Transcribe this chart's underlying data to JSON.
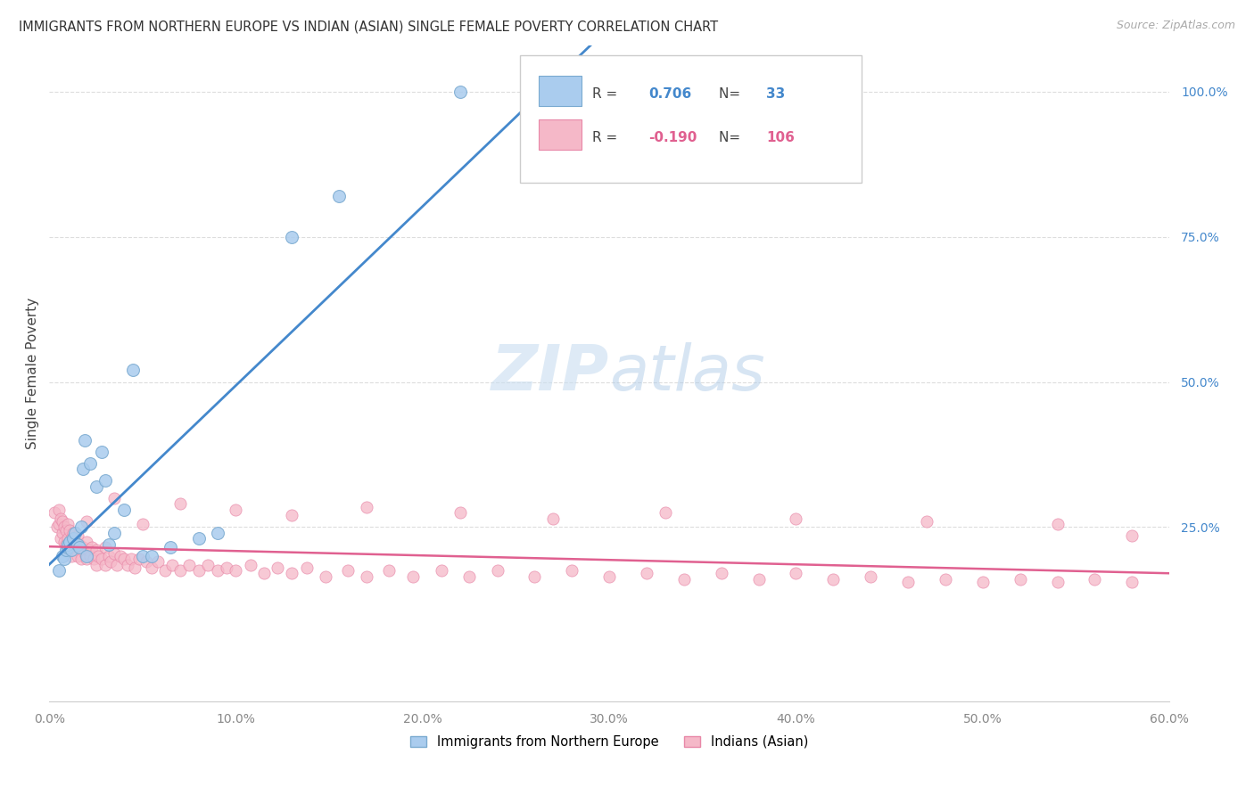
{
  "title": "IMMIGRANTS FROM NORTHERN EUROPE VS INDIAN (ASIAN) SINGLE FEMALE POVERTY CORRELATION CHART",
  "source": "Source: ZipAtlas.com",
  "ylabel": "Single Female Poverty",
  "xlim": [
    0.0,
    0.6
  ],
  "ylim": [
    -0.05,
    1.08
  ],
  "xtick_values": [
    0.0,
    0.1,
    0.2,
    0.3,
    0.4,
    0.5,
    0.6
  ],
  "ytick_values_right": [
    1.0,
    0.75,
    0.5,
    0.25
  ],
  "ytick_labels_right": [
    "100.0%",
    "75.0%",
    "50.0%",
    "25.0%"
  ],
  "R1": "0.706",
  "N1": "33",
  "R2": "-0.190",
  "N2": "106",
  "legend_label1": "Immigrants from Northern Europe",
  "legend_label2": "Indians (Asian)",
  "color_blue": "#aaccee",
  "color_blue_edge": "#7aaad0",
  "color_pink": "#f5b8c8",
  "color_pink_edge": "#e888a8",
  "color_blue_line": "#4488cc",
  "color_pink_line": "#e06090",
  "color_blue_text": "#4488cc",
  "color_pink_text": "#e06090",
  "watermark_zip": "ZIP",
  "watermark_atlas": "atlas",
  "grid_color": "#dddddd",
  "title_color": "#333333",
  "source_color": "#aaaaaa",
  "blue_x": [
    0.005,
    0.007,
    0.008,
    0.009,
    0.01,
    0.01,
    0.011,
    0.012,
    0.013,
    0.014,
    0.015,
    0.016,
    0.017,
    0.018,
    0.019,
    0.02,
    0.022,
    0.025,
    0.028,
    0.03,
    0.032,
    0.035,
    0.04,
    0.045,
    0.05,
    0.055,
    0.065,
    0.08,
    0.09,
    0.13,
    0.155,
    0.22,
    0.295
  ],
  "blue_y": [
    0.175,
    0.2,
    0.195,
    0.21,
    0.215,
    0.22,
    0.225,
    0.21,
    0.23,
    0.24,
    0.22,
    0.215,
    0.25,
    0.35,
    0.4,
    0.2,
    0.36,
    0.32,
    0.38,
    0.33,
    0.22,
    0.24,
    0.28,
    0.52,
    0.2,
    0.2,
    0.215,
    0.23,
    0.24,
    0.75,
    0.82,
    1.0,
    1.0
  ],
  "pink_x": [
    0.003,
    0.004,
    0.005,
    0.005,
    0.006,
    0.006,
    0.007,
    0.007,
    0.008,
    0.008,
    0.009,
    0.009,
    0.01,
    0.01,
    0.01,
    0.011,
    0.011,
    0.012,
    0.012,
    0.013,
    0.013,
    0.014,
    0.015,
    0.015,
    0.016,
    0.017,
    0.018,
    0.019,
    0.02,
    0.02,
    0.021,
    0.022,
    0.023,
    0.024,
    0.025,
    0.025,
    0.026,
    0.028,
    0.03,
    0.03,
    0.032,
    0.033,
    0.035,
    0.036,
    0.038,
    0.04,
    0.042,
    0.044,
    0.046,
    0.048,
    0.052,
    0.055,
    0.058,
    0.062,
    0.066,
    0.07,
    0.075,
    0.08,
    0.085,
    0.09,
    0.095,
    0.1,
    0.108,
    0.115,
    0.122,
    0.13,
    0.138,
    0.148,
    0.16,
    0.17,
    0.182,
    0.195,
    0.21,
    0.225,
    0.24,
    0.26,
    0.28,
    0.3,
    0.32,
    0.34,
    0.36,
    0.38,
    0.4,
    0.42,
    0.44,
    0.46,
    0.48,
    0.5,
    0.52,
    0.54,
    0.56,
    0.58,
    0.02,
    0.035,
    0.05,
    0.07,
    0.1,
    0.13,
    0.17,
    0.22,
    0.27,
    0.33,
    0.4,
    0.47,
    0.54,
    0.58
  ],
  "pink_y": [
    0.275,
    0.25,
    0.28,
    0.255,
    0.265,
    0.23,
    0.26,
    0.24,
    0.25,
    0.225,
    0.245,
    0.22,
    0.255,
    0.23,
    0.21,
    0.245,
    0.215,
    0.23,
    0.2,
    0.24,
    0.21,
    0.225,
    0.235,
    0.2,
    0.22,
    0.195,
    0.215,
    0.205,
    0.225,
    0.195,
    0.21,
    0.2,
    0.215,
    0.195,
    0.21,
    0.185,
    0.2,
    0.195,
    0.215,
    0.185,
    0.2,
    0.19,
    0.205,
    0.185,
    0.2,
    0.195,
    0.185,
    0.195,
    0.18,
    0.195,
    0.19,
    0.18,
    0.19,
    0.175,
    0.185,
    0.175,
    0.185,
    0.175,
    0.185,
    0.175,
    0.18,
    0.175,
    0.185,
    0.17,
    0.18,
    0.17,
    0.18,
    0.165,
    0.175,
    0.165,
    0.175,
    0.165,
    0.175,
    0.165,
    0.175,
    0.165,
    0.175,
    0.165,
    0.17,
    0.16,
    0.17,
    0.16,
    0.17,
    0.16,
    0.165,
    0.155,
    0.16,
    0.155,
    0.16,
    0.155,
    0.16,
    0.155,
    0.26,
    0.3,
    0.255,
    0.29,
    0.28,
    0.27,
    0.285,
    0.275,
    0.265,
    0.275,
    0.265,
    0.26,
    0.255,
    0.235
  ]
}
